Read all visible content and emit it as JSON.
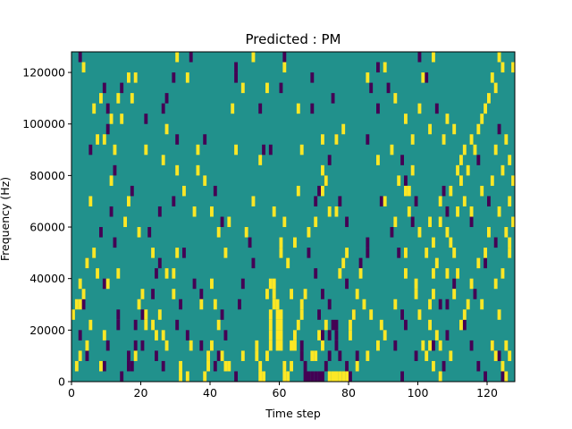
{
  "chart_data": {
    "type": "heatmap",
    "title": "Predicted : PM",
    "xlabel": "Time step",
    "ylabel": "Frequency (Hz)",
    "xlim": [
      0,
      128
    ],
    "ylim": [
      0,
      128000
    ],
    "x_ticks": [
      0,
      20,
      40,
      60,
      80,
      100,
      120
    ],
    "y_ticks": [
      0,
      20000,
      40000,
      60000,
      80000,
      100000,
      120000
    ],
    "x_tick_labels": [
      "0",
      "20",
      "40",
      "60",
      "80",
      "100",
      "120"
    ],
    "y_tick_labels": [
      "0",
      "20000",
      "40000",
      "60000",
      "80000",
      "100000",
      "120000"
    ],
    "colors": {
      "background": "#21918c",
      "high": "#fde725",
      "low": "#440154"
    },
    "cell_width_timesteps": 1,
    "cell_height_hz": 4000,
    "low_cells": [
      [
        2,
        124000
      ],
      [
        9,
        112000
      ],
      [
        14,
        112000
      ],
      [
        10,
        104000
      ],
      [
        10,
        96000
      ],
      [
        5,
        88000
      ],
      [
        12,
        80000
      ],
      [
        17,
        72000
      ],
      [
        11,
        64000
      ],
      [
        8,
        56000
      ],
      [
        12,
        52000
      ],
      [
        4,
        44000
      ],
      [
        9,
        36000
      ],
      [
        3,
        28000
      ],
      [
        13,
        24000
      ],
      [
        13,
        20000
      ],
      [
        2,
        16000
      ],
      [
        10,
        12000
      ],
      [
        4,
        8000
      ],
      [
        9,
        4000
      ],
      [
        14,
        0
      ],
      [
        20,
        12000
      ],
      [
        24,
        8000
      ],
      [
        26,
        4000
      ],
      [
        23,
        32000
      ],
      [
        24,
        40000
      ],
      [
        25,
        44000
      ],
      [
        22,
        56000
      ],
      [
        25,
        64000
      ],
      [
        29,
        68000
      ],
      [
        21,
        100000
      ],
      [
        26,
        104000
      ],
      [
        27,
        108000
      ],
      [
        29,
        116000
      ],
      [
        34,
        124000
      ],
      [
        38,
        92000
      ],
      [
        41,
        72000
      ],
      [
        43,
        60000
      ],
      [
        32,
        48000
      ],
      [
        35,
        36000
      ],
      [
        37,
        32000
      ],
      [
        31,
        28000
      ],
      [
        30,
        20000
      ],
      [
        33,
        16000
      ],
      [
        37,
        12000
      ],
      [
        41,
        4000
      ],
      [
        42,
        8000
      ],
      [
        47,
        0
      ],
      [
        43,
        24000
      ],
      [
        44,
        16000
      ],
      [
        48,
        28000
      ],
      [
        49,
        36000
      ],
      [
        52,
        44000
      ],
      [
        51,
        52000
      ],
      [
        55,
        88000
      ],
      [
        57,
        88000
      ],
      [
        54,
        104000
      ],
      [
        60,
        112000
      ],
      [
        61,
        124000
      ],
      [
        47,
        120000
      ],
      [
        47,
        116000
      ],
      [
        69,
        116000
      ],
      [
        69,
        104000
      ],
      [
        75,
        108000
      ],
      [
        76,
        92000
      ],
      [
        74,
        84000
      ],
      [
        71,
        72000
      ],
      [
        73,
        76000
      ],
      [
        70,
        68000
      ],
      [
        77,
        68000
      ],
      [
        79,
        60000
      ],
      [
        68,
        48000
      ],
      [
        70,
        40000
      ],
      [
        72,
        32000
      ],
      [
        74,
        28000
      ],
      [
        71,
        24000
      ],
      [
        72,
        16000
      ],
      [
        66,
        12000
      ],
      [
        66,
        8000
      ],
      [
        67,
        4000
      ],
      [
        67,
        0
      ],
      [
        68,
        0
      ],
      [
        69,
        0
      ],
      [
        70,
        0
      ],
      [
        71,
        0
      ],
      [
        72,
        0
      ],
      [
        73,
        4000
      ],
      [
        74,
        8000
      ],
      [
        74,
        16000
      ],
      [
        75,
        20000
      ],
      [
        76,
        20000
      ],
      [
        76,
        12000
      ],
      [
        76,
        16000
      ],
      [
        77,
        8000
      ],
      [
        79,
        4000
      ],
      [
        80,
        0
      ],
      [
        82,
        8000
      ],
      [
        81,
        24000
      ],
      [
        79,
        36000
      ],
      [
        83,
        44000
      ],
      [
        85,
        48000
      ],
      [
        85,
        52000
      ],
      [
        85,
        92000
      ],
      [
        86,
        112000
      ],
      [
        91,
        112000
      ],
      [
        88,
        104000
      ],
      [
        89,
        68000
      ],
      [
        92,
        56000
      ],
      [
        94,
        48000
      ],
      [
        95,
        84000
      ],
      [
        96,
        76000
      ],
      [
        99,
        68000
      ],
      [
        98,
        60000
      ],
      [
        95,
        24000
      ],
      [
        96,
        20000
      ],
      [
        93,
        12000
      ],
      [
        95,
        0
      ],
      [
        99,
        8000
      ],
      [
        104,
        12000
      ],
      [
        107,
        4000
      ],
      [
        108,
        16000
      ],
      [
        108,
        28000
      ],
      [
        110,
        36000
      ],
      [
        113,
        20000
      ],
      [
        115,
        12000
      ],
      [
        117,
        4000
      ],
      [
        119,
        0
      ],
      [
        116,
        32000
      ],
      [
        119,
        44000
      ],
      [
        122,
        52000
      ],
      [
        115,
        60000
      ],
      [
        117,
        84000
      ],
      [
        123,
        96000
      ],
      [
        128,
        104000
      ],
      [
        128,
        80000
      ],
      [
        128,
        120000
      ],
      [
        121,
        12000
      ],
      [
        123,
        8000
      ],
      [
        124,
        0
      ],
      [
        125,
        0
      ],
      [
        107,
        72000
      ],
      [
        108,
        64000
      ],
      [
        120,
        68000
      ],
      [
        106,
        28000
      ],
      [
        102,
        116000
      ],
      [
        105,
        104000
      ],
      [
        88,
        120000
      ],
      [
        18,
        20000
      ],
      [
        16,
        8000
      ],
      [
        16,
        4000
      ],
      [
        17,
        4000
      ],
      [
        18,
        12000
      ],
      [
        100,
        124000
      ],
      [
        20,
        24000
      ],
      [
        30,
        92000
      ]
    ],
    "high_cells": [
      [
        3,
        120000
      ],
      [
        8,
        108000
      ],
      [
        11,
        100000
      ],
      [
        7,
        92000
      ],
      [
        6,
        104000
      ],
      [
        13,
        108000
      ],
      [
        16,
        116000
      ],
      [
        17,
        108000
      ],
      [
        21,
        88000
      ],
      [
        27,
        96000
      ],
      [
        26,
        84000
      ],
      [
        30,
        80000
      ],
      [
        32,
        72000
      ],
      [
        36,
        88000
      ],
      [
        40,
        64000
      ],
      [
        42,
        56000
      ],
      [
        44,
        48000
      ],
      [
        40,
        36000
      ],
      [
        47,
        88000
      ],
      [
        49,
        112000
      ],
      [
        46,
        104000
      ],
      [
        50,
        56000
      ],
      [
        52,
        124000
      ],
      [
        56,
        112000
      ],
      [
        58,
        64000
      ],
      [
        60,
        52000
      ],
      [
        60,
        48000
      ],
      [
        61,
        120000
      ],
      [
        65,
        104000
      ],
      [
        72,
        92000
      ],
      [
        72,
        80000
      ],
      [
        72,
        72000
      ],
      [
        73,
        76000
      ],
      [
        76,
        92000
      ],
      [
        78,
        96000
      ],
      [
        77,
        40000
      ],
      [
        78,
        44000
      ],
      [
        79,
        48000
      ],
      [
        83,
        40000
      ],
      [
        82,
        32000
      ],
      [
        84,
        28000
      ],
      [
        86,
        24000
      ],
      [
        80,
        20000
      ],
      [
        80,
        16000
      ],
      [
        81,
        24000
      ],
      [
        78,
        0
      ],
      [
        77,
        0
      ],
      [
        76,
        0
      ],
      [
        75,
        0
      ],
      [
        74,
        0
      ],
      [
        79,
        0
      ],
      [
        82,
        4000
      ],
      [
        85,
        8000
      ],
      [
        88,
        12000
      ],
      [
        90,
        16000
      ],
      [
        89,
        20000
      ],
      [
        93,
        28000
      ],
      [
        96,
        40000
      ],
      [
        96,
        48000
      ],
      [
        93,
        60000
      ],
      [
        90,
        68000
      ],
      [
        97,
        72000
      ],
      [
        98,
        80000
      ],
      [
        100,
        104000
      ],
      [
        101,
        116000
      ],
      [
        104,
        124000
      ],
      [
        103,
        96000
      ],
      [
        99,
        36000
      ],
      [
        99,
        32000
      ],
      [
        100,
        24000
      ],
      [
        101,
        12000
      ],
      [
        102,
        8000
      ],
      [
        103,
        12000
      ],
      [
        103,
        28000
      ],
      [
        104,
        32000
      ],
      [
        104,
        40000
      ],
      [
        105,
        44000
      ],
      [
        104,
        52000
      ],
      [
        103,
        60000
      ],
      [
        103,
        20000
      ],
      [
        105,
        16000
      ],
      [
        106,
        12000
      ],
      [
        104,
        4000
      ],
      [
        106,
        0
      ],
      [
        109,
        8000
      ],
      [
        112,
        20000
      ],
      [
        113,
        24000
      ],
      [
        111,
        64000
      ],
      [
        113,
        68000
      ],
      [
        112,
        76000
      ],
      [
        116,
        88000
      ],
      [
        117,
        96000
      ],
      [
        119,
        104000
      ],
      [
        122,
        88000
      ],
      [
        124,
        80000
      ],
      [
        126,
        68000
      ],
      [
        127,
        60000
      ],
      [
        126,
        52000
      ],
      [
        124,
        40000
      ],
      [
        122,
        36000
      ],
      [
        123,
        24000
      ],
      [
        121,
        12000
      ],
      [
        122,
        8000
      ],
      [
        124,
        4000
      ],
      [
        125,
        0
      ],
      [
        125,
        12000
      ],
      [
        126,
        8000
      ],
      [
        124,
        120000
      ],
      [
        127,
        120000
      ],
      [
        0,
        24000
      ],
      [
        1,
        28000
      ],
      [
        2,
        28000
      ],
      [
        2,
        36000
      ],
      [
        3,
        32000
      ],
      [
        4,
        44000
      ],
      [
        6,
        48000
      ],
      [
        7,
        40000
      ],
      [
        10,
        36000
      ],
      [
        5,
        68000
      ],
      [
        18,
        8000
      ],
      [
        19,
        28000
      ],
      [
        20,
        32000
      ],
      [
        21,
        20000
      ],
      [
        21,
        24000
      ],
      [
        23,
        20000
      ],
      [
        24,
        16000
      ],
      [
        25,
        24000
      ],
      [
        26,
        16000
      ],
      [
        29,
        32000
      ],
      [
        29,
        40000
      ],
      [
        30,
        48000
      ],
      [
        34,
        12000
      ],
      [
        37,
        28000
      ],
      [
        41,
        28000
      ],
      [
        42,
        20000
      ],
      [
        43,
        8000
      ],
      [
        44,
        4000
      ],
      [
        45,
        4000
      ],
      [
        49,
        8000
      ],
      [
        53,
        8000
      ],
      [
        53,
        12000
      ],
      [
        54,
        4000
      ],
      [
        54,
        0
      ],
      [
        55,
        0
      ],
      [
        56,
        8000
      ],
      [
        57,
        12000
      ],
      [
        57,
        16000
      ],
      [
        57,
        20000
      ],
      [
        57,
        24000
      ],
      [
        58,
        28000
      ],
      [
        58,
        32000
      ],
      [
        59,
        28000
      ],
      [
        59,
        24000
      ],
      [
        59,
        20000
      ],
      [
        59,
        16000
      ],
      [
        59,
        12000
      ],
      [
        60,
        12000
      ],
      [
        60,
        16000
      ],
      [
        60,
        20000
      ],
      [
        60,
        24000
      ],
      [
        61,
        4000
      ],
      [
        61,
        0
      ],
      [
        62,
        0
      ],
      [
        63,
        4000
      ],
      [
        63,
        12000
      ],
      [
        64,
        12000
      ],
      [
        64,
        16000
      ],
      [
        65,
        20000
      ],
      [
        66,
        24000
      ],
      [
        66,
        28000
      ],
      [
        67,
        32000
      ],
      [
        69,
        8000
      ],
      [
        70,
        8000
      ],
      [
        71,
        16000
      ],
      [
        72,
        12000
      ],
      [
        73,
        20000
      ],
      [
        45,
        60000
      ],
      [
        35,
        64000
      ],
      [
        38,
        76000
      ],
      [
        36,
        80000
      ],
      [
        52,
        68000
      ],
      [
        54,
        84000
      ],
      [
        66,
        88000
      ],
      [
        65,
        72000
      ],
      [
        61,
        60000
      ],
      [
        63,
        32000
      ],
      [
        56,
        32000
      ],
      [
        57,
        36000
      ],
      [
        58,
        36000
      ],
      [
        62,
        44000
      ],
      [
        64,
        52000
      ],
      [
        68,
        56000
      ],
      [
        70,
        60000
      ],
      [
        74,
        64000
      ],
      [
        76,
        64000
      ],
      [
        88,
        84000
      ],
      [
        92,
        88000
      ],
      [
        94,
        76000
      ],
      [
        96,
        72000
      ],
      [
        97,
        64000
      ],
      [
        100,
        56000
      ],
      [
        102,
        48000
      ],
      [
        108,
        40000
      ],
      [
        110,
        32000
      ],
      [
        114,
        28000
      ],
      [
        117,
        44000
      ],
      [
        119,
        48000
      ],
      [
        120,
        56000
      ],
      [
        115,
        64000
      ],
      [
        110,
        96000
      ],
      [
        108,
        100000
      ],
      [
        30,
        124000
      ],
      [
        33,
        116000
      ],
      [
        18,
        116000
      ],
      [
        14,
        100000
      ],
      [
        9,
        92000
      ],
      [
        12,
        88000
      ],
      [
        11,
        76000
      ],
      [
        16,
        68000
      ],
      [
        19,
        56000
      ],
      [
        23,
        48000
      ],
      [
        27,
        40000
      ],
      [
        27,
        12000
      ],
      [
        31,
        4000
      ],
      [
        31,
        0
      ],
      [
        33,
        0
      ],
      [
        38,
        0
      ],
      [
        39,
        4000
      ],
      [
        39,
        8000
      ],
      [
        40,
        12000
      ],
      [
        15,
        60000
      ],
      [
        13,
        40000
      ],
      [
        8,
        4000
      ],
      [
        9,
        16000
      ],
      [
        4,
        12000
      ],
      [
        5,
        20000
      ],
      [
        2,
        8000
      ],
      [
        1,
        4000
      ],
      [
        85,
        116000
      ],
      [
        90,
        120000
      ],
      [
        93,
        108000
      ],
      [
        96,
        100000
      ],
      [
        98,
        92000
      ],
      [
        107,
        92000
      ],
      [
        112,
        84000
      ],
      [
        114,
        80000
      ],
      [
        118,
        72000
      ],
      [
        121,
        76000
      ],
      [
        123,
        64000
      ],
      [
        125,
        56000
      ],
      [
        126,
        48000
      ],
      [
        118,
        28000
      ],
      [
        115,
        36000
      ],
      [
        111,
        40000
      ],
      [
        110,
        48000
      ],
      [
        109,
        52000
      ],
      [
        108,
        56000
      ],
      [
        106,
        60000
      ],
      [
        106,
        68000
      ],
      [
        109,
        72000
      ],
      [
        111,
        80000
      ],
      [
        113,
        88000
      ],
      [
        115,
        92000
      ],
      [
        118,
        100000
      ],
      [
        120,
        108000
      ],
      [
        122,
        112000
      ],
      [
        121,
        116000
      ],
      [
        123,
        124000
      ],
      [
        125,
        92000
      ],
      [
        126,
        84000
      ],
      [
        127,
        76000
      ]
    ]
  }
}
